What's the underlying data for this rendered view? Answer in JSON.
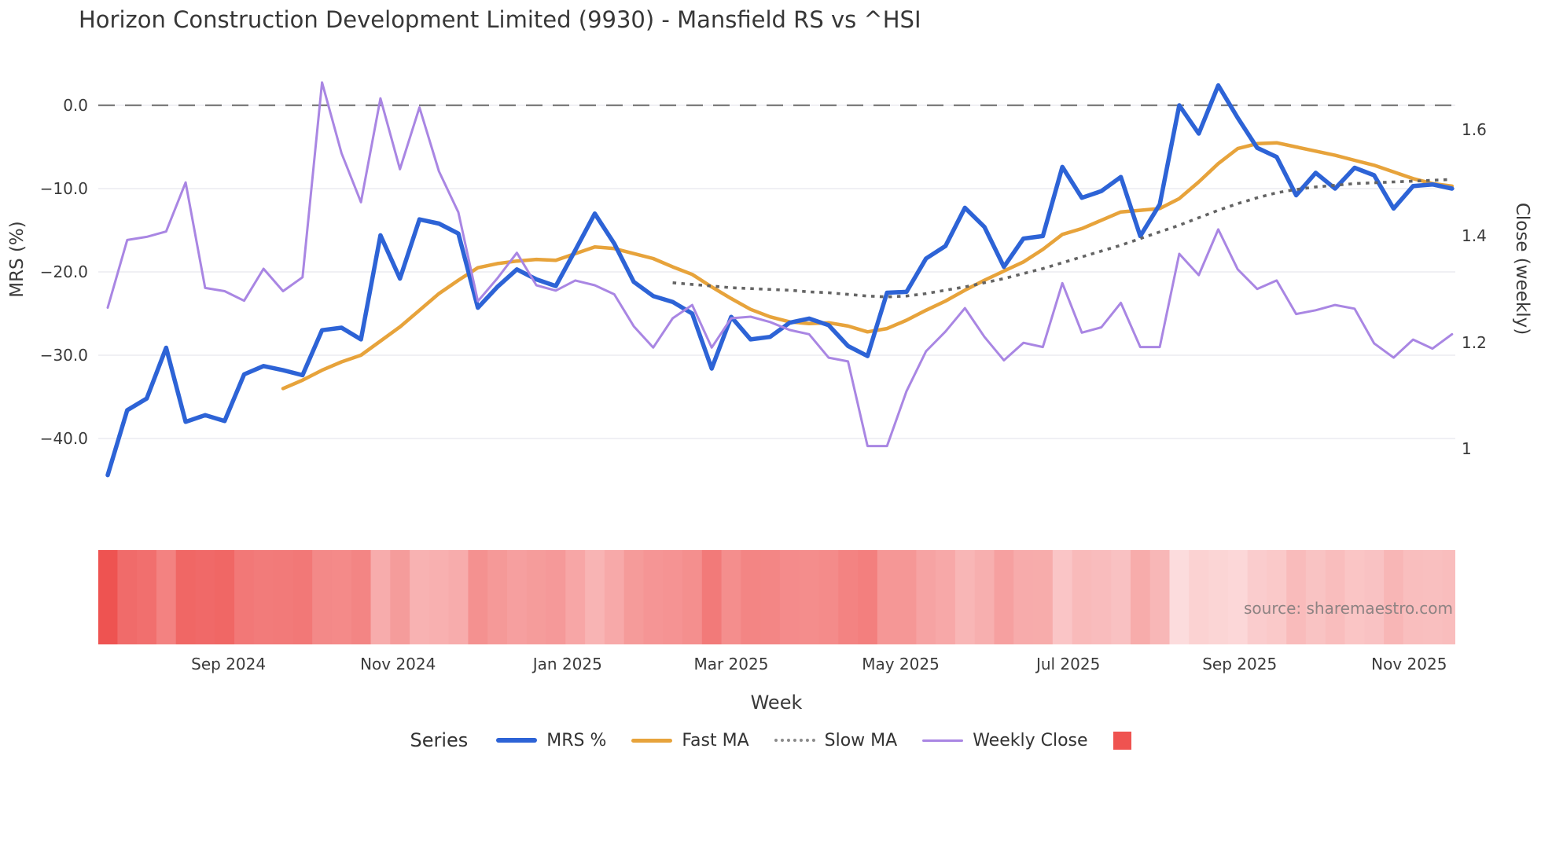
{
  "page": {
    "title": "Horizon Construction Development Limited (9930) - Mansfield RS vs ^HSI",
    "source": "source: sharemaestro.com"
  },
  "chart_data": {
    "type": "line",
    "title": "Horizon Construction Development Limited (9930) - Mansfield RS vs ^HSI",
    "xlabel": "Week",
    "ylabel_left": "MRS (%)",
    "ylabel_right": "Close (weekly)",
    "grid": true,
    "zero_line_dashed": true,
    "x_ticks": [
      {
        "label": "Sep 2024",
        "week": 6.2
      },
      {
        "label": "Nov 2024",
        "week": 14.9
      },
      {
        "label": "Jan 2025",
        "week": 23.6
      },
      {
        "label": "Mar 2025",
        "week": 32.0
      },
      {
        "label": "May 2025",
        "week": 40.7
      },
      {
        "label": "Jul 2025",
        "week": 49.3
      },
      {
        "label": "Sep 2025",
        "week": 58.1
      },
      {
        "label": "Nov 2025",
        "week": 66.8
      }
    ],
    "left_axis": {
      "tick_labels": [
        "0.0",
        "−10.0",
        "−20.0",
        "−30.0",
        "−40.0"
      ],
      "tick_values": [
        0,
        -10,
        -20,
        -30,
        -40
      ],
      "range": [
        -47,
        4
      ]
    },
    "right_axis": {
      "tick_labels": [
        "1.6",
        "1.4",
        "1.2",
        "1"
      ],
      "tick_values": [
        1.6,
        1.4,
        1.2,
        1.0
      ],
      "range": [
        0.95,
        1.72
      ]
    },
    "series": [
      {
        "name": "MRS %",
        "axis": "left",
        "color": "#2d63d6",
        "style": "solid",
        "width": 5.5,
        "start_week": 0,
        "values": [
          -44.4,
          -36.6,
          -35.2,
          -29.1,
          -38.0,
          -37.2,
          -37.9,
          -32.3,
          -31.3,
          -31.8,
          -32.4,
          -27.0,
          -26.7,
          -28.1,
          -15.6,
          -20.8,
          -13.7,
          -14.2,
          -15.4,
          -24.3,
          -21.8,
          -19.7,
          -20.9,
          -21.7,
          -17.4,
          -13.0,
          -16.6,
          -21.2,
          -22.9,
          -23.6,
          -25.0,
          -31.6,
          -25.4,
          -28.1,
          -27.8,
          -26.1,
          -25.6,
          -26.4,
          -28.9,
          -30.1,
          -22.5,
          -22.4,
          -18.4,
          -16.9,
          -12.3,
          -14.6,
          -19.4,
          -16.0,
          -15.7,
          -7.4,
          -11.1,
          -10.3,
          -8.6,
          -15.7,
          -11.9,
          0.0,
          -3.4,
          2.4,
          -1.5,
          -5.1,
          -6.2,
          -10.8,
          -8.1,
          -10.0,
          -7.5,
          -8.4,
          -12.4,
          -9.7,
          -9.5,
          -10.0
        ]
      },
      {
        "name": "Fast MA",
        "axis": "left",
        "color": "#e7a33b",
        "style": "solid",
        "width": 4.5,
        "start_week": 9,
        "values": [
          -34.0,
          -33.0,
          -31.8,
          -30.8,
          -30.0,
          -28.3,
          -26.6,
          -24.6,
          -22.6,
          -21.0,
          -19.5,
          -19.0,
          -18.7,
          -18.5,
          -18.6,
          -17.8,
          -17.0,
          -17.2,
          -17.8,
          -18.4,
          -19.4,
          -20.3,
          -21.8,
          -23.2,
          -24.5,
          -25.4,
          -26.0,
          -26.2,
          -26.1,
          -26.5,
          -27.2,
          -26.8,
          -25.8,
          -24.6,
          -23.5,
          -22.2,
          -21.0,
          -19.9,
          -18.8,
          -17.3,
          -15.5,
          -14.8,
          -13.8,
          -12.8,
          -12.6,
          -12.4,
          -11.2,
          -9.2,
          -7.0,
          -5.2,
          -4.6,
          -4.5,
          -5.0,
          -5.5,
          -6.0,
          -6.6,
          -7.2,
          -8.0,
          -8.8,
          -9.4,
          -9.7
        ]
      },
      {
        "name": "Slow MA",
        "axis": "left",
        "color": "#646464",
        "style": "dotted",
        "width": 3.6,
        "start_week": 29,
        "values": [
          -21.3,
          -21.5,
          -21.7,
          -21.9,
          -22.0,
          -22.1,
          -22.2,
          -22.4,
          -22.5,
          -22.7,
          -22.9,
          -23.0,
          -22.9,
          -22.6,
          -22.2,
          -21.8,
          -21.3,
          -20.8,
          -20.2,
          -19.6,
          -18.9,
          -18.2,
          -17.5,
          -16.8,
          -16.0,
          -15.2,
          -14.4,
          -13.5,
          -12.6,
          -11.8,
          -11.1,
          -10.5,
          -10.1,
          -9.8,
          -9.6,
          -9.4,
          -9.3,
          -9.2,
          -9.1,
          -9.0,
          -8.9
        ]
      },
      {
        "name": "Weekly Close",
        "axis": "right",
        "color": "#a986e3",
        "style": "solid",
        "width": 3,
        "start_week": 0,
        "values": [
          1.265,
          1.392,
          1.398,
          1.408,
          1.5,
          1.302,
          1.296,
          1.278,
          1.338,
          1.296,
          1.322,
          1.688,
          1.555,
          1.463,
          1.658,
          1.525,
          1.641,
          1.521,
          1.444,
          1.277,
          1.32,
          1.368,
          1.307,
          1.297,
          1.316,
          1.307,
          1.29,
          1.23,
          1.19,
          1.245,
          1.27,
          1.19,
          1.245,
          1.248,
          1.238,
          1.223,
          1.215,
          1.171,
          1.164,
          1.005,
          1.005,
          1.108,
          1.183,
          1.22,
          1.264,
          1.21,
          1.166,
          1.199,
          1.191,
          1.311,
          1.218,
          1.228,
          1.274,
          1.191,
          1.191,
          1.366,
          1.326,
          1.412,
          1.337,
          1.3,
          1.316,
          1.253,
          1.26,
          1.27,
          1.263,
          1.198,
          1.171,
          1.205,
          1.188,
          1.215
        ]
      }
    ],
    "heatmap": {
      "source_series": "MRS %",
      "description": "weekly strip below chart, color encodes |MRS %|",
      "color_low": "#fcdcdd",
      "color_high": "#ee5351",
      "value_domain": [
        0,
        44.4
      ]
    },
    "legend": {
      "title": "Series",
      "items": [
        {
          "label": "MRS %",
          "color": "#2d63d6",
          "style": "solid",
          "thickness": 6
        },
        {
          "label": "Fast MA",
          "color": "#e7a33b",
          "style": "solid",
          "thickness": 5
        },
        {
          "label": "Slow MA",
          "color": "#8a8a8a",
          "style": "dotted",
          "thickness": 4
        },
        {
          "label": "Weekly Close",
          "color": "#a986e3",
          "style": "solid",
          "thickness": 3
        }
      ],
      "heatmap_swatch_color": "#ef5350"
    }
  }
}
